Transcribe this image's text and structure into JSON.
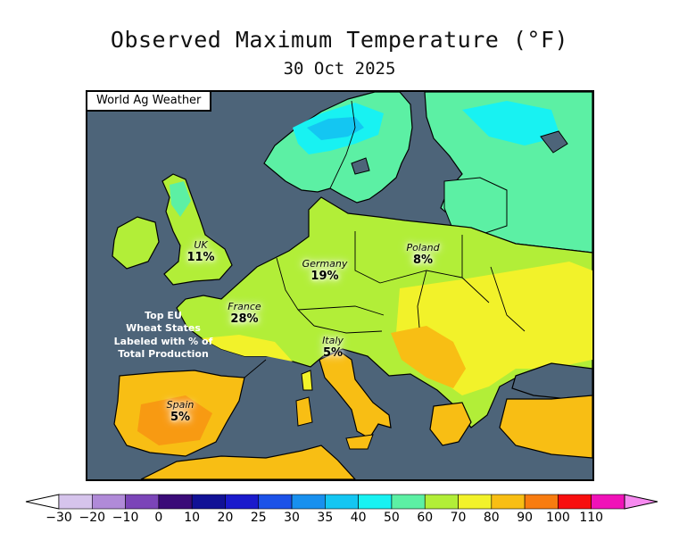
{
  "title": "Observed Maximum Temperature (°F)",
  "subtitle": "30 Oct 2025",
  "source_label": "World Ag Weather",
  "note": {
    "lines": [
      "Top EU",
      "Wheat States",
      "Labeled with % of",
      "Total Production"
    ]
  },
  "countries": [
    {
      "name": "UK",
      "percent": "11%"
    },
    {
      "name": "Germany",
      "percent": "19%"
    },
    {
      "name": "Poland",
      "percent": "8%"
    },
    {
      "name": "France",
      "percent": "28%"
    },
    {
      "name": "Italy",
      "percent": "5%"
    },
    {
      "name": "Spain",
      "percent": "5%"
    }
  ],
  "colorbar": {
    "labels": [
      "−30",
      "−20",
      "−10",
      "0",
      "10",
      "20",
      "25",
      "30",
      "35",
      "40",
      "50",
      "60",
      "70",
      "80",
      "90",
      "100",
      "110"
    ],
    "colors": [
      "#d6c4ec",
      "#b08ad8",
      "#7b45b8",
      "#3a0b78",
      "#111196",
      "#1a1acc",
      "#1c52e8",
      "#1890ee",
      "#14c6f2",
      "#18f2f2",
      "#5cf0a4",
      "#b2ee38",
      "#f2f22a",
      "#f8be14",
      "#f87c10",
      "#f80e0e",
      "#f012b8"
    ],
    "low_arrow_color": "#ffffff",
    "high_arrow_color": "#f78af0"
  },
  "colors": {
    "ocean": "#4d6479",
    "coast": "#000000"
  }
}
